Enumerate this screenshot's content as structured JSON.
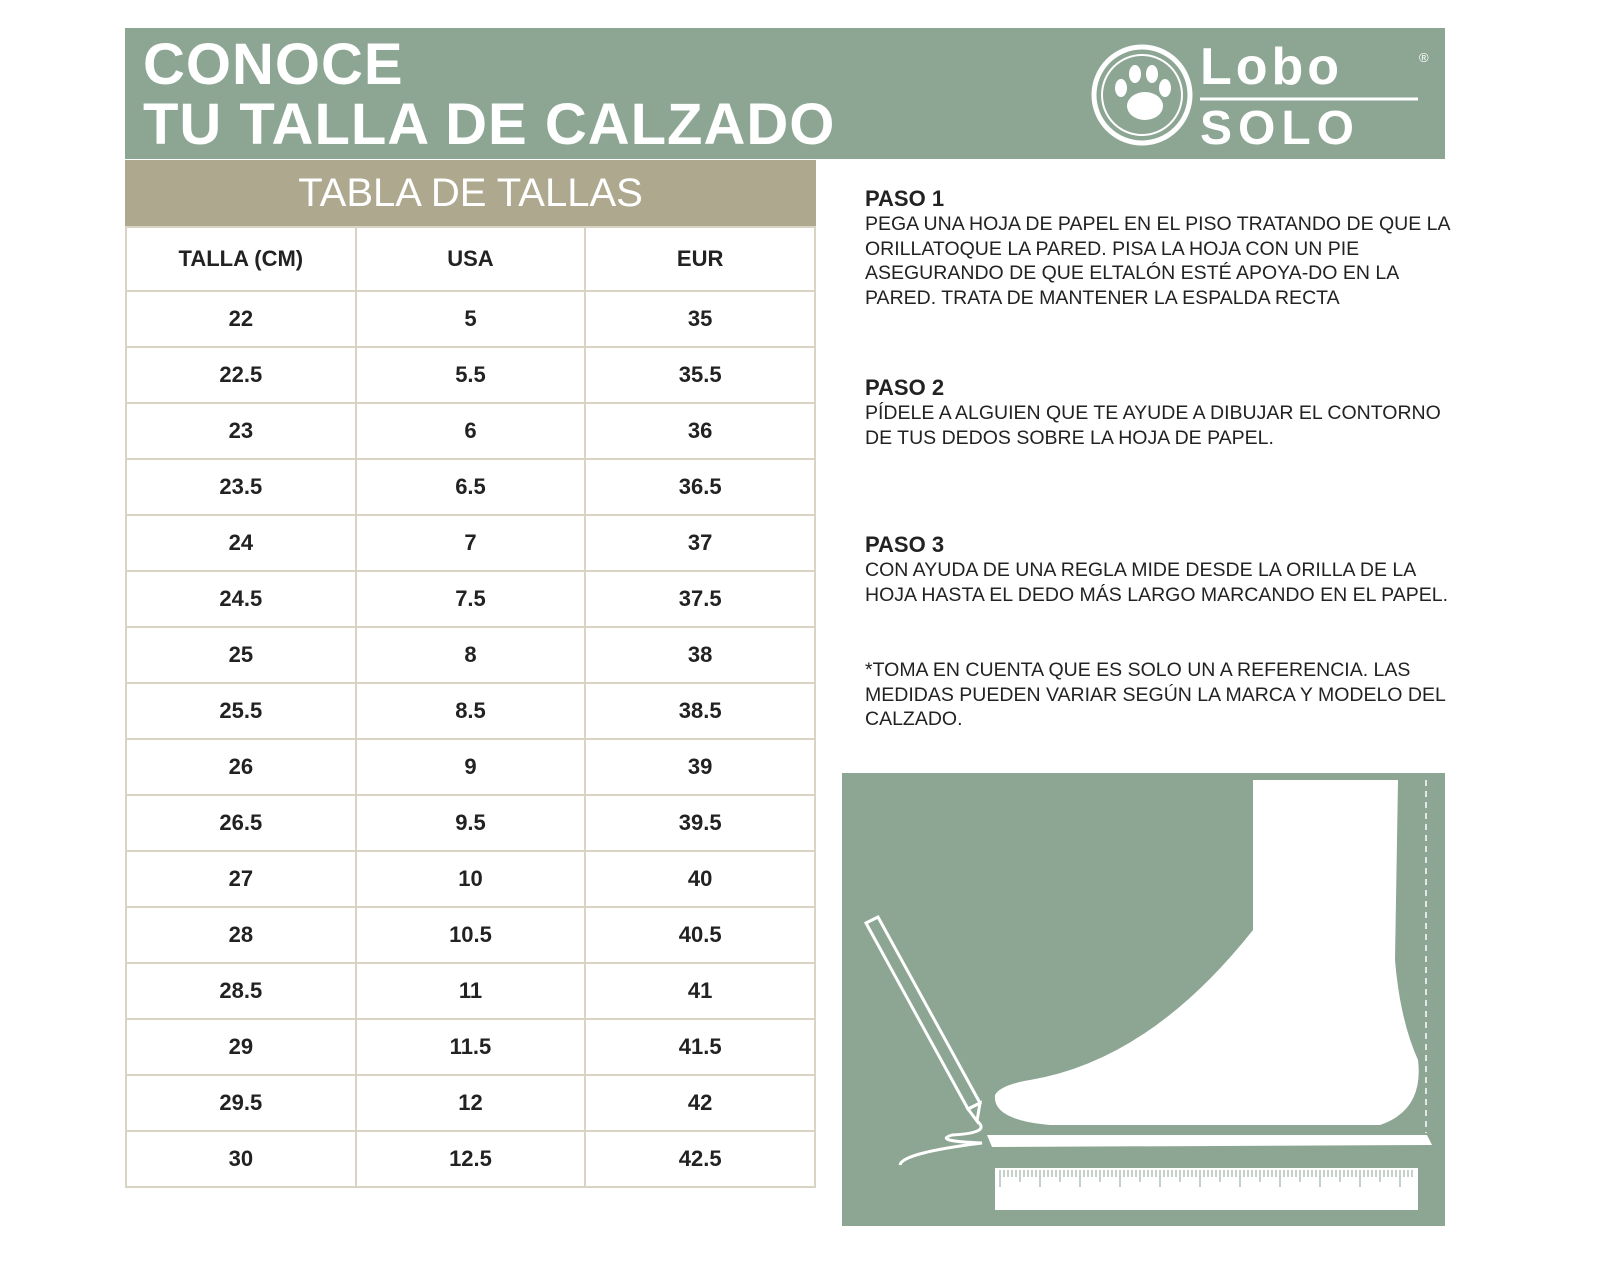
{
  "header": {
    "title_line1": "CONOCE",
    "title_line2": "TU TALLA DE CALZADO",
    "logo_top": "Lobo",
    "logo_bottom": "SOLO",
    "logo_mark": "®"
  },
  "table": {
    "title": "TABLA DE TALLAS",
    "columns": [
      "TALLA (CM)",
      "USA",
      "EUR"
    ],
    "rows": [
      [
        "22",
        "5",
        "35"
      ],
      [
        "22.5",
        "5.5",
        "35.5"
      ],
      [
        "23",
        "6",
        "36"
      ],
      [
        "23.5",
        "6.5",
        "36.5"
      ],
      [
        "24",
        "7",
        "37"
      ],
      [
        "24.5",
        "7.5",
        "37.5"
      ],
      [
        "25",
        "8",
        "38"
      ],
      [
        "25.5",
        "8.5",
        "38.5"
      ],
      [
        "26",
        "9",
        "39"
      ],
      [
        "26.5",
        "9.5",
        "39.5"
      ],
      [
        "27",
        "10",
        "40"
      ],
      [
        "28",
        "10.5",
        "40.5"
      ],
      [
        "28.5",
        "11",
        "41"
      ],
      [
        "29",
        "11.5",
        "41.5"
      ],
      [
        "29.5",
        "12",
        "42"
      ],
      [
        "30",
        "12.5",
        "42.5"
      ]
    ]
  },
  "steps": [
    {
      "title": "PASO 1",
      "text": "PEGA UNA HOJA DE PAPEL EN EL PISO TRATANDO DE QUE LA ORILLATOQUE LA PARED. PISA LA HOJA CON UN PIE ASEGURANDO DE QUE ELTALÓN ESTÉ APOYA-DO EN LA PARED. TRATA DE MANTENER LA ESPALDA RECTA"
    },
    {
      "title": "PASO 2",
      "text": "PÍDELE A ALGUIEN QUE TE AYUDE A DIBUJAR EL CONTORNO DE TUS DEDOS SOBRE LA HOJA DE PAPEL."
    },
    {
      "title": "PASO 3",
      "text": "CON AYUDA DE UNA REGLA MIDE DESDE LA ORILLA DE LA HOJA HASTA EL DEDO MÁS LARGO MARCANDO EN EL PAPEL."
    }
  ],
  "note": "*TOMA EN CUENTA QUE ES SOLO UN A REFERENCIA. LAS MEDIDAS PUEDEN VARIAR SEGÚN LA MARCA Y MODELO DEL CALZADO."
}
